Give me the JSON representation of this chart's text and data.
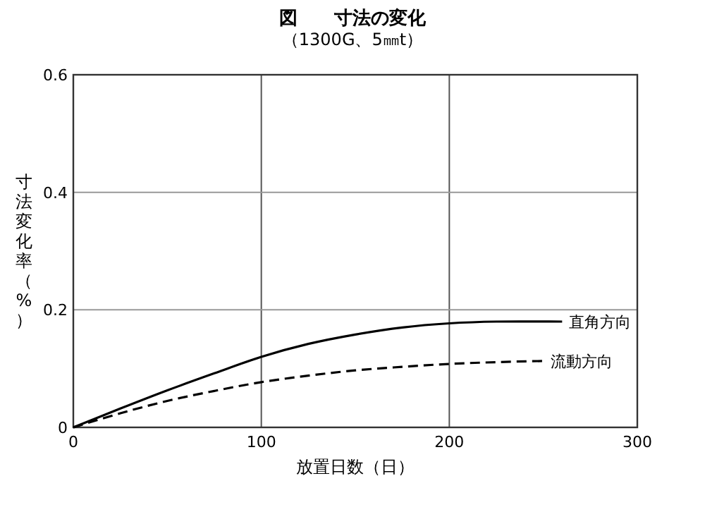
{
  "chart_data": {
    "type": "line",
    "title": "図　　寸法の変化",
    "subtitle": "（1300G、5㎜t）",
    "xlabel": "放置日数（日）",
    "ylabel": "寸法変化率（%）",
    "xlim": [
      0,
      300
    ],
    "ylim": [
      0,
      0.6
    ],
    "xticks": [
      0,
      100,
      200,
      300
    ],
    "yticks": [
      0,
      0.2,
      0.4,
      0.6
    ],
    "grid": true,
    "series": [
      {
        "name": "直角方向",
        "color": "#000000",
        "line_style": "solid",
        "x": [
          0,
          25,
          50,
          75,
          100,
          125,
          150,
          175,
          200,
          225,
          260
        ],
        "values": [
          0,
          0.032,
          0.063,
          0.092,
          0.12,
          0.142,
          0.158,
          0.17,
          0.177,
          0.18,
          0.18
        ]
      },
      {
        "name": "流動方向",
        "color": "#000000",
        "line_style": "dashed",
        "x": [
          0,
          25,
          50,
          75,
          100,
          125,
          150,
          175,
          200,
          225,
          250
        ],
        "values": [
          0,
          0.024,
          0.045,
          0.062,
          0.077,
          0.088,
          0.097,
          0.103,
          0.108,
          0.111,
          0.113
        ]
      }
    ]
  }
}
